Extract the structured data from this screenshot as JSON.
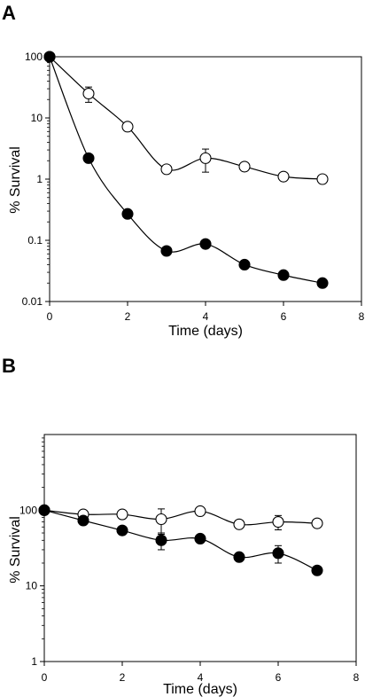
{
  "chart_data": [
    {
      "panel": "A",
      "type": "line",
      "yscale": "log",
      "xlabel": "Time (days)",
      "ylabel": "% Survival",
      "xlim": [
        0,
        8
      ],
      "ylim": [
        0.01,
        100
      ],
      "xticks": [
        0,
        2,
        4,
        6,
        8
      ],
      "xtick_labels": [
        "0",
        "2",
        "4",
        "6",
        "8"
      ],
      "yticks": [
        0.01,
        0.1,
        1,
        10,
        100
      ],
      "ytick_labels": [
        "0.01",
        "0.1",
        "1",
        "10",
        "100"
      ],
      "grid": false,
      "series": [
        {
          "marker": "open-circle",
          "x": [
            0,
            1,
            2,
            3,
            4,
            5,
            6,
            7
          ],
          "y": [
            100,
            25,
            7.2,
            1.45,
            2.2,
            1.6,
            1.1,
            1.0
          ],
          "err": [
            0,
            7,
            0,
            0,
            0.9,
            0,
            0,
            0
          ]
        },
        {
          "marker": "filled-circle",
          "x": [
            0,
            1,
            2,
            3,
            4,
            5,
            6,
            7
          ],
          "y": [
            100,
            2.2,
            0.27,
            0.067,
            0.087,
            0.04,
            0.027,
            0.02
          ],
          "err": [
            0,
            0,
            0,
            0,
            0,
            0,
            0,
            0
          ]
        }
      ]
    },
    {
      "panel": "B",
      "type": "line",
      "yscale": "log",
      "xlabel": "Time (days)",
      "ylabel": "% Survival",
      "xlim": [
        0,
        8
      ],
      "ylim": [
        1,
        1000
      ],
      "xticks": [
        0,
        2,
        4,
        6,
        8
      ],
      "xtick_labels": [
        "0",
        "2",
        "4",
        "6",
        "8"
      ],
      "yticks": [
        1,
        10,
        100
      ],
      "ytick_labels": [
        "1",
        "10",
        "100"
      ],
      "grid": false,
      "series": [
        {
          "marker": "open-circle",
          "x": [
            0,
            1,
            2,
            3,
            4,
            5,
            6,
            7
          ],
          "y": [
            100,
            88,
            88,
            76,
            97,
            65,
            70,
            67
          ],
          "err": [
            0,
            0,
            0,
            28,
            0,
            0,
            15,
            0
          ]
        },
        {
          "marker": "filled-circle",
          "x": [
            0,
            1,
            2,
            3,
            4,
            5,
            6,
            7
          ],
          "y": [
            100,
            73,
            54,
            40,
            42,
            24,
            27,
            16
          ],
          "err": [
            0,
            0,
            0,
            10,
            0,
            0,
            7,
            0
          ]
        }
      ]
    }
  ],
  "labels": {
    "panel_a": "A",
    "panel_b": "B"
  },
  "colors": {
    "line": "#000000",
    "open_fill": "#ffffff",
    "filled_fill": "#000000"
  }
}
